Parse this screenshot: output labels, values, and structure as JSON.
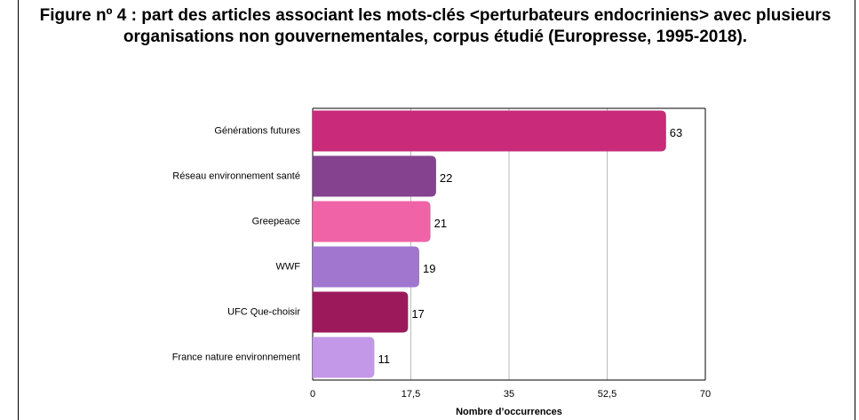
{
  "chart_data": {
    "type": "bar",
    "orientation": "horizontal",
    "title": "Figure nº 4 : part des articles associant les mots-clés <perturbateurs endocriniens> avec plusieurs organisations non gouvernementales, corpus étudié (Europresse, 1995-2018).",
    "xlabel": "Nombre d’occurrences",
    "categories": [
      "Générations futures",
      "Réseau environnement santé",
      "Greepeace",
      "WWF",
      "UFC Que-choisir",
      "France nature environnement"
    ],
    "values": [
      63,
      22,
      21,
      19,
      17,
      11
    ],
    "colors": [
      "#c92a7a",
      "#84428f",
      "#f063a6",
      "#a176cf",
      "#9c1a5c",
      "#c498e8"
    ],
    "xlim": [
      0,
      70
    ],
    "xticks": [
      0,
      {
        "value": 17.5,
        "label": "17,5"
      },
      35,
      {
        "value": 52.5,
        "label": "52,5"
      },
      70
    ],
    "grid": true
  }
}
